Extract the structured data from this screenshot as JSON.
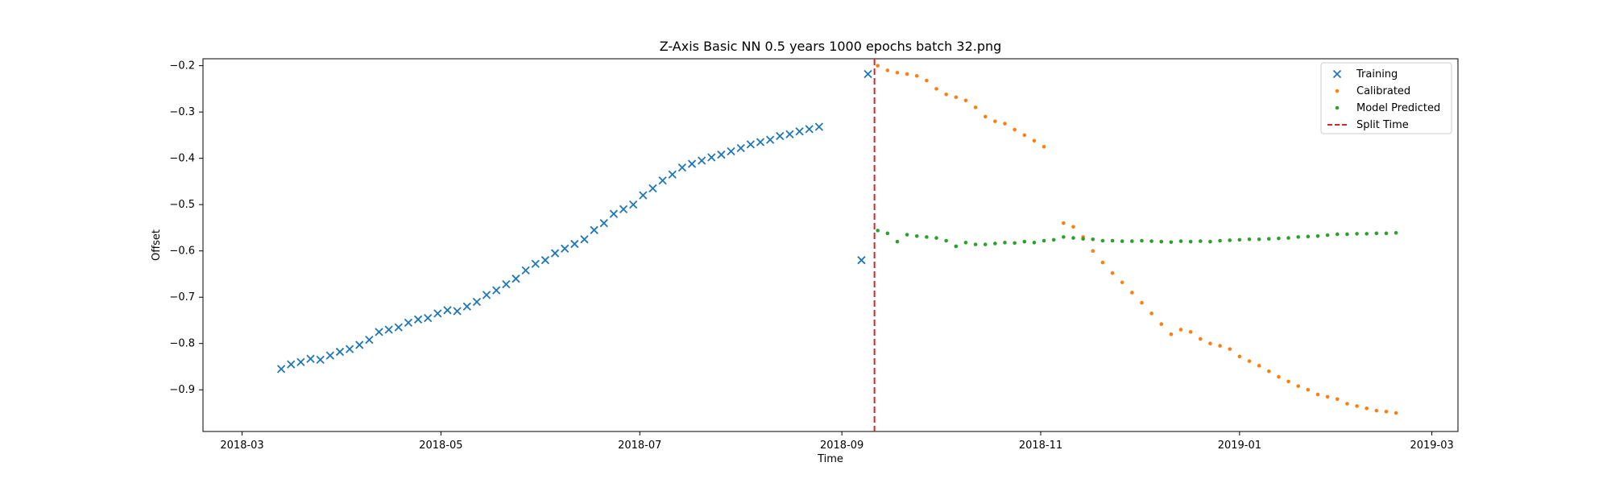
{
  "chart_data": {
    "type": "scatter",
    "title": "Z-Axis Basic NN 0.5 years 1000 epochs batch 32.png",
    "xlabel": "Time",
    "ylabel": "Offset",
    "x_axis_type": "date",
    "xlim": [
      "2018-02-17",
      "2019-03-09"
    ],
    "ylim": [
      -0.99,
      -0.185
    ],
    "x_ticks": [
      "2018-03",
      "2018-05",
      "2018-07",
      "2018-09",
      "2018-11",
      "2019-01",
      "2019-03"
    ],
    "x_tick_dates": [
      "2018-03-01",
      "2018-05-01",
      "2018-07-01",
      "2018-09-01",
      "2018-11-01",
      "2019-01-01",
      "2019-03-01"
    ],
    "y_ticks": [
      -0.9,
      -0.8,
      -0.7,
      -0.6,
      -0.5,
      -0.4,
      -0.3,
      -0.2
    ],
    "y_tick_labels": [
      "−0.9",
      "−0.8",
      "−0.7",
      "−0.6",
      "−0.5",
      "−0.4",
      "−0.3",
      "−0.2"
    ],
    "grid": false,
    "legend_position": "top-right",
    "series": [
      {
        "name": "Training",
        "marker": "x",
        "color": "#1f77b4",
        "x": [
          "2018-03-13",
          "2018-03-16",
          "2018-03-19",
          "2018-03-22",
          "2018-03-25",
          "2018-03-28",
          "2018-03-31",
          "2018-04-03",
          "2018-04-06",
          "2018-04-09",
          "2018-04-12",
          "2018-04-15",
          "2018-04-18",
          "2018-04-21",
          "2018-04-24",
          "2018-04-27",
          "2018-04-30",
          "2018-05-03",
          "2018-05-06",
          "2018-05-09",
          "2018-05-12",
          "2018-05-15",
          "2018-05-18",
          "2018-05-21",
          "2018-05-24",
          "2018-05-27",
          "2018-05-30",
          "2018-06-02",
          "2018-06-05",
          "2018-06-08",
          "2018-06-11",
          "2018-06-14",
          "2018-06-17",
          "2018-06-20",
          "2018-06-23",
          "2018-06-26",
          "2018-06-29",
          "2018-07-02",
          "2018-07-05",
          "2018-07-08",
          "2018-07-11",
          "2018-07-14",
          "2018-07-17",
          "2018-07-20",
          "2018-07-23",
          "2018-07-26",
          "2018-07-29",
          "2018-08-01",
          "2018-08-04",
          "2018-08-07",
          "2018-08-10",
          "2018-08-13",
          "2018-08-16",
          "2018-08-19",
          "2018-08-22",
          "2018-08-25",
          "2018-09-07",
          "2018-09-09"
        ],
        "y": [
          -0.855,
          -0.845,
          -0.84,
          -0.833,
          -0.835,
          -0.826,
          -0.818,
          -0.812,
          -0.803,
          -0.792,
          -0.775,
          -0.77,
          -0.765,
          -0.755,
          -0.748,
          -0.745,
          -0.735,
          -0.728,
          -0.73,
          -0.72,
          -0.71,
          -0.695,
          -0.685,
          -0.672,
          -0.66,
          -0.642,
          -0.628,
          -0.62,
          -0.605,
          -0.595,
          -0.585,
          -0.575,
          -0.555,
          -0.54,
          -0.52,
          -0.51,
          -0.5,
          -0.48,
          -0.465,
          -0.448,
          -0.435,
          -0.42,
          -0.412,
          -0.405,
          -0.398,
          -0.392,
          -0.385,
          -0.378,
          -0.37,
          -0.365,
          -0.36,
          -0.352,
          -0.348,
          -0.342,
          -0.337,
          -0.332,
          -0.62,
          -0.218
        ]
      },
      {
        "name": "Calibrated",
        "marker": "point",
        "color": "#ff7f0e",
        "x": [
          "2018-09-12",
          "2018-09-15",
          "2018-09-18",
          "2018-09-21",
          "2018-09-24",
          "2018-09-27",
          "2018-09-30",
          "2018-10-03",
          "2018-10-06",
          "2018-10-09",
          "2018-10-12",
          "2018-10-15",
          "2018-10-18",
          "2018-10-21",
          "2018-10-24",
          "2018-10-27",
          "2018-10-30",
          "2018-11-02",
          "2018-11-05",
          "2018-11-08",
          "2018-11-11",
          "2018-11-14",
          "2018-11-17",
          "2018-11-20",
          "2018-11-23",
          "2018-11-26",
          "2018-11-29",
          "2018-12-02",
          "2018-12-05",
          "2018-12-08",
          "2018-12-11",
          "2018-12-14",
          "2018-12-17",
          "2018-12-20",
          "2018-12-23",
          "2018-12-26",
          "2018-12-29",
          "2019-01-01",
          "2019-01-04",
          "2019-01-07",
          "2019-01-10",
          "2019-01-13",
          "2019-01-16",
          "2019-01-19",
          "2019-01-22",
          "2019-01-25",
          "2019-01-28",
          "2019-01-31",
          "2019-02-03",
          "2019-02-06",
          "2019-02-09",
          "2019-02-12",
          "2019-02-15",
          "2019-02-18"
        ],
        "y": [
          -0.2,
          -0.21,
          -0.215,
          -0.218,
          -0.222,
          -0.232,
          -0.25,
          -0.262,
          -0.268,
          -0.275,
          -0.29,
          -0.31,
          -0.32,
          -0.325,
          -0.338,
          -0.35,
          -0.362,
          -0.375,
          null,
          -0.54,
          -0.548,
          -0.57,
          -0.6,
          -0.625,
          -0.648,
          -0.668,
          -0.69,
          -0.712,
          -0.735,
          -0.758,
          -0.78,
          -0.77,
          -0.775,
          -0.79,
          -0.8,
          -0.805,
          -0.812,
          -0.828,
          -0.838,
          -0.848,
          -0.86,
          -0.872,
          -0.882,
          -0.892,
          -0.9,
          -0.91,
          -0.915,
          -0.92,
          -0.93,
          -0.935,
          -0.94,
          -0.945,
          -0.947,
          -0.95
        ]
      },
      {
        "name": "Model Predicted",
        "marker": "point",
        "color": "#2ca02c",
        "x": [
          "2018-09-12",
          "2018-09-15",
          "2018-09-18",
          "2018-09-21",
          "2018-09-24",
          "2018-09-27",
          "2018-09-30",
          "2018-10-03",
          "2018-10-06",
          "2018-10-09",
          "2018-10-12",
          "2018-10-15",
          "2018-10-18",
          "2018-10-21",
          "2018-10-24",
          "2018-10-27",
          "2018-10-30",
          "2018-11-02",
          "2018-11-05",
          "2018-11-08",
          "2018-11-11",
          "2018-11-14",
          "2018-11-17",
          "2018-11-20",
          "2018-11-23",
          "2018-11-26",
          "2018-11-29",
          "2018-12-02",
          "2018-12-05",
          "2018-12-08",
          "2018-12-11",
          "2018-12-14",
          "2018-12-17",
          "2018-12-20",
          "2018-12-23",
          "2018-12-26",
          "2018-12-29",
          "2019-01-01",
          "2019-01-04",
          "2019-01-07",
          "2019-01-10",
          "2019-01-13",
          "2019-01-16",
          "2019-01-19",
          "2019-01-22",
          "2019-01-25",
          "2019-01-28",
          "2019-01-31",
          "2019-02-03",
          "2019-02-06",
          "2019-02-09",
          "2019-02-12",
          "2019-02-15",
          "2019-02-18"
        ],
        "y": [
          -0.556,
          -0.562,
          -0.58,
          -0.565,
          -0.568,
          -0.57,
          -0.572,
          -0.578,
          -0.59,
          -0.582,
          -0.586,
          -0.586,
          -0.584,
          -0.582,
          -0.583,
          -0.58,
          -0.582,
          -0.578,
          -0.576,
          -0.57,
          -0.572,
          -0.574,
          -0.575,
          -0.578,
          -0.578,
          -0.579,
          -0.579,
          -0.578,
          -0.579,
          -0.58,
          -0.581,
          -0.579,
          -0.58,
          -0.579,
          -0.58,
          -0.578,
          -0.577,
          -0.576,
          -0.575,
          -0.575,
          -0.574,
          -0.573,
          -0.572,
          -0.57,
          -0.569,
          -0.568,
          -0.566,
          -0.564,
          -0.564,
          -0.563,
          -0.563,
          -0.562,
          -0.562,
          -0.561
        ]
      }
    ],
    "reference_lines": [
      {
        "name": "Split Time",
        "orientation": "vertical",
        "x": "2018-09-11",
        "style": "dashed",
        "color": "#d62728"
      }
    ]
  }
}
